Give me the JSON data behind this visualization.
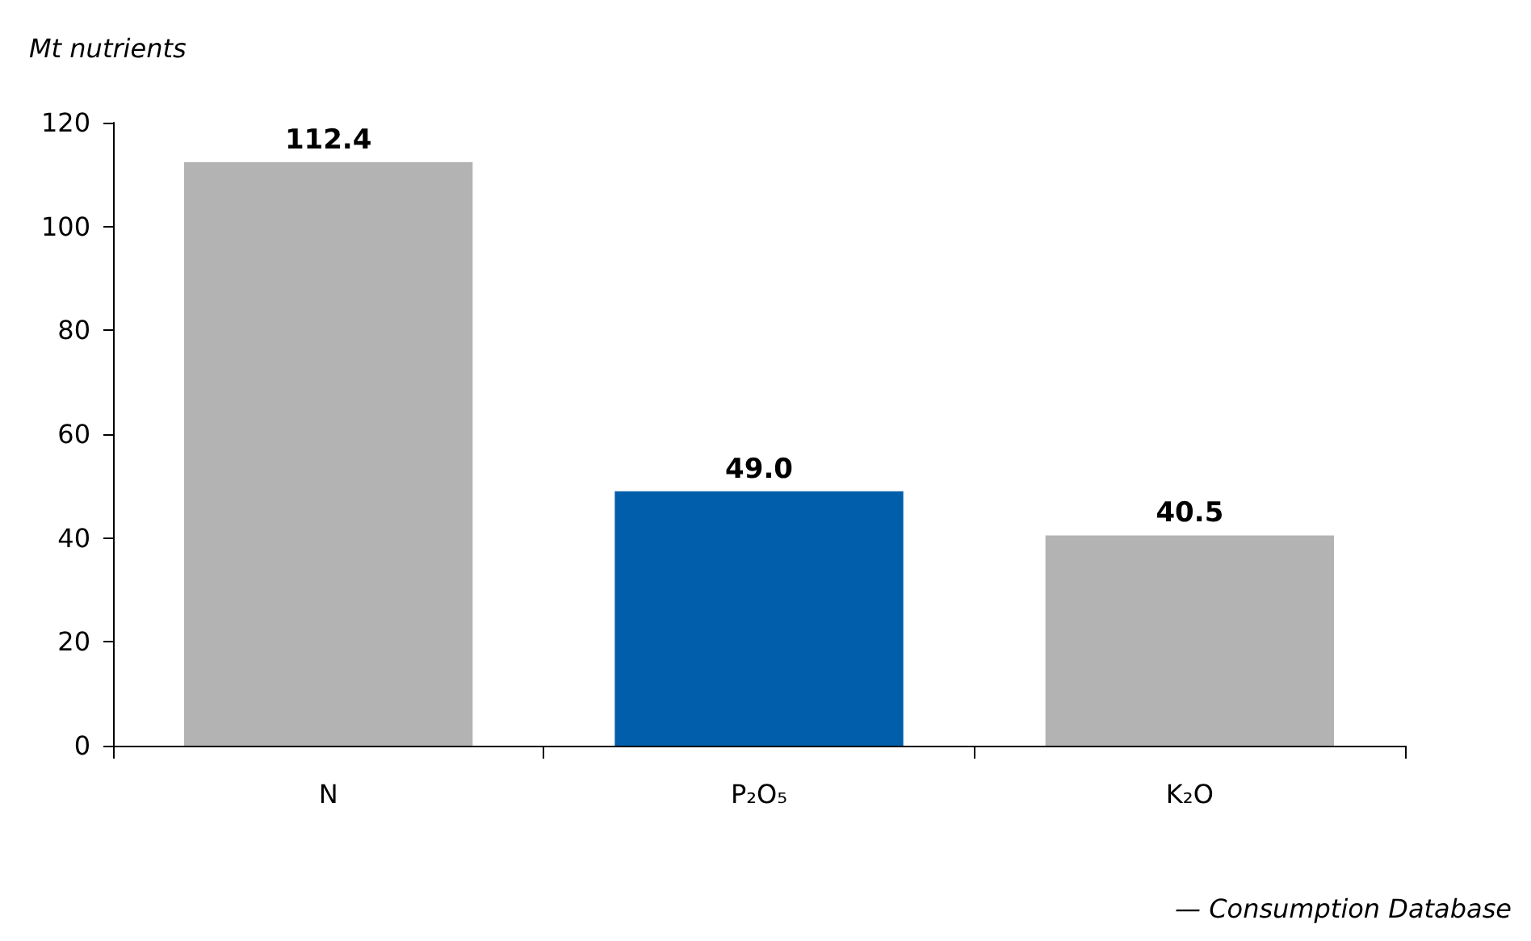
{
  "chart_data": {
    "type": "bar",
    "ylabel": "Mt nutrients",
    "categories": [
      "N",
      "P₂O₅",
      "K₂O"
    ],
    "values": [
      112.4,
      49.0,
      40.5
    ],
    "colors": [
      "#b3b3b3",
      "#005eaa",
      "#b3b3b3"
    ],
    "value_labels": [
      "112.4",
      "49.0",
      "40.5"
    ],
    "ylim": [
      0,
      120
    ],
    "yticks": [
      0,
      20,
      40,
      60,
      80,
      100,
      120
    ],
    "grid": false,
    "annotations": [
      "— Consumption Database"
    ]
  }
}
